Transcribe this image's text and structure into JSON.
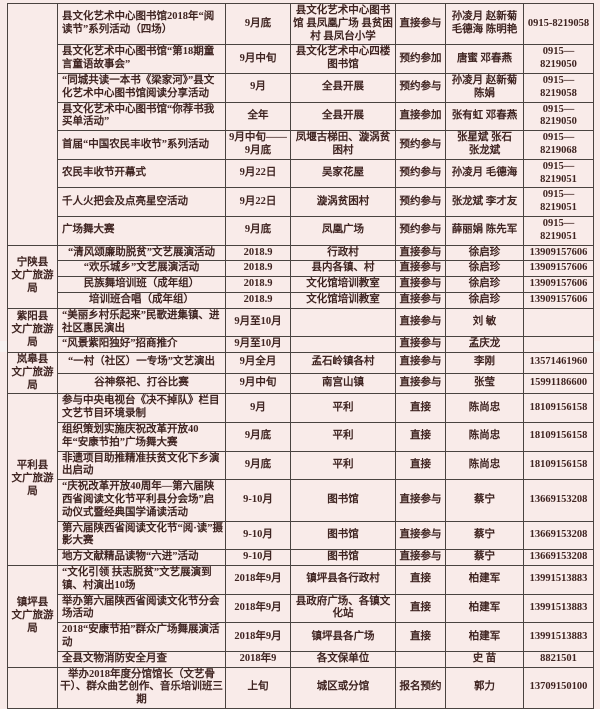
{
  "page": {
    "bg_color": "#f8eae8",
    "cell_bg_color": "#f9ebe9",
    "border_color": "#4a4340",
    "text_color": "#3f2421"
  },
  "tables": [
    {
      "org_groups": [
        {
          "label": "",
          "span": 8
        },
        {
          "label": "宁陕县\n文广旅游局",
          "span": 4
        },
        {
          "label": "紫阳县\n文广旅游局",
          "span": 2
        }
      ],
      "rows": [
        {
          "activity": "县文化艺术中心图书馆2018年“阅读节”系列活动（四场）",
          "time": "9月底",
          "location": "县文化艺术中心图书馆 县凤凰广场 县贫困村 县凤台小学",
          "participation": "直接参与",
          "contact": "孙凌月 赵新菊\n毛德海 陈明艳",
          "phone": "0915-8219058",
          "align": "left"
        },
        {
          "activity": "县文化艺术中心图书馆“第18期童言童语故事会”",
          "time": "9月中旬",
          "location": "县文化艺术中心四楼图书馆",
          "participation": "预约参加",
          "contact": "唐蜜 邓春燕",
          "phone": "0915—8219050",
          "align": "left"
        },
        {
          "activity": "“同城共读一本书《梁家河》”县文化艺术中心图书馆阅读分享活动",
          "time": "9月",
          "location": "全县开展",
          "participation": "预约参与",
          "contact": "孙凌月 赵新菊\n陈娟",
          "phone": "0915—8219058",
          "align": "left"
        },
        {
          "activity": "县文化艺术中心图书馆“你荐书我买单活动”",
          "time": "全年",
          "location": "全县开展",
          "participation": "直接参加",
          "contact": "张有虹 邓春燕",
          "phone": "0915—8219050",
          "align": "left"
        },
        {
          "activity": "首届“中国农民丰收节”系列活动",
          "time": "9月中旬——9月底",
          "location": "凤堰古梯田、漩涡贫困村",
          "participation": "预约参与",
          "contact": "张星斌 张石\n张龙斌",
          "phone": "0915—8219068",
          "align": "left"
        },
        {
          "activity": "农民丰收节开幕式",
          "time": "9月22日",
          "location": "吴家花屋",
          "participation": "预约参与",
          "contact": "孙凌月 毛德海",
          "phone": "0915—8219051",
          "align": "left"
        },
        {
          "activity": "千人火把会及点亮星空活动",
          "time": "9月22日",
          "location": "漩涡贫困村",
          "participation": "预约参与",
          "contact": "张龙斌 李才友",
          "phone": "0915—8219051",
          "align": "left"
        },
        {
          "activity": "广场舞大赛",
          "time": "9月底",
          "location": "凤凰广场",
          "participation": "预约参与",
          "contact": "薛丽娟 陈先军",
          "phone": "0915—8219051",
          "align": "left"
        },
        {
          "activity": "“清风颂廉助脱贫”文艺展演活动",
          "time": "2018.9",
          "location": "行政村",
          "participation": "直接参与",
          "contact": "徐启珍",
          "phone": "13909157606",
          "align": "center"
        },
        {
          "activity": "“欢乐城乡”文艺展演活动",
          "time": "2018.9",
          "location": "县内各镇、村",
          "participation": "直接参与",
          "contact": "徐启珍",
          "phone": "13909157606",
          "align": "center"
        },
        {
          "activity": "民族舞培训班（成年组）",
          "time": "2018.9",
          "location": "文化馆培训教室",
          "participation": "直接参与",
          "contact": "徐启珍",
          "phone": "13909157606",
          "align": "center"
        },
        {
          "activity": "培训班合唱（成年组）",
          "time": "2018.9",
          "location": "文化馆培训教室",
          "participation": "直接参与",
          "contact": "徐启珍",
          "phone": "13909157606",
          "align": "center"
        },
        {
          "activity": "“美丽乡村乐起来”民歌进集镇、进社区惠民演出",
          "time": "9月至10月",
          "location": "",
          "participation": "直接参与",
          "contact": "刘 敏",
          "phone": "",
          "align": "left"
        },
        {
          "activity": "“风景紫阳独好”招商推介",
          "time": "9月至10月",
          "location": "",
          "participation": "直接参与",
          "contact": "孟庆龙",
          "phone": "",
          "align": "left"
        }
      ]
    },
    {
      "org_groups": [
        {
          "label": "岚皋县\n文广旅游局",
          "span": 2
        },
        {
          "label": "平利县\n文广旅游局",
          "span": 6
        },
        {
          "label": "镇坪县\n文广旅游局",
          "span": 4
        },
        {
          "label": "",
          "span": 1
        }
      ],
      "rows": [
        {
          "activity": "“一村（社区）一专场”文艺演出",
          "time": "9月全月",
          "location": "孟石岭镇各村",
          "participation": "直接参与",
          "contact": "李刚",
          "phone": "13571461960",
          "align": "center"
        },
        {
          "activity": "谷神祭祀、打谷比赛",
          "time": "9月中旬",
          "location": "南宫山镇",
          "participation": "直接参与",
          "contact": "张莹",
          "phone": "15991186600",
          "align": "center"
        },
        {
          "activity": "参与中央电视台《决不掉队》栏目文艺节目环境录制",
          "time": "9月",
          "location": "平利",
          "participation": "直接",
          "contact": "陈尚忠",
          "phone": "18109156158",
          "align": "left"
        },
        {
          "activity": "组织策划实施庆祝改革开放40年“安康节拍”广场舞大赛",
          "time": "9月底",
          "location": "平利",
          "participation": "直接",
          "contact": "陈尚忠",
          "phone": "18109156158",
          "align": "left"
        },
        {
          "activity": "非遗项目助推精准扶贫文化下乡演出启动",
          "time": "9月底",
          "location": "平利",
          "participation": "直接",
          "contact": "陈尚忠",
          "phone": "18109156158",
          "align": "left"
        },
        {
          "activity": "“庆祝改革开放40周年—第六届陕西省阅读文化节平利县分会场”启动仪式暨经典国学诵读活动",
          "time": "9-10月",
          "location": "图书馆",
          "participation": "直接参与",
          "contact": "蔡宁",
          "phone": "13669153208",
          "align": "left"
        },
        {
          "activity": "第六届陕西省阅读文化节“阅·读”摄影大赛",
          "time": "9-10月",
          "location": "图书馆",
          "participation": "直接参与",
          "contact": "蔡宁",
          "phone": "13669153208",
          "align": "left"
        },
        {
          "activity": "地方文献精品读物“六进”活动",
          "time": "9-10月",
          "location": "图书馆",
          "participation": "直接参与",
          "contact": "蔡宁",
          "phone": "13669153208",
          "align": "left"
        },
        {
          "activity": "“文化引领 扶志脱贫”文艺展演到镇、村演出10场",
          "time": "2018年9月",
          "location": "镇坪县各行政村",
          "participation": "直接",
          "contact": "柏建军",
          "phone": "13991513883",
          "align": "left"
        },
        {
          "activity": "举办第六届陕西省阅读文化节分会场活动",
          "time": "2018年9月",
          "location": "县政府广场、各镇文化站",
          "participation": "直接",
          "contact": "柏建军",
          "phone": "13991513883",
          "align": "left"
        },
        {
          "activity": "2018“安康节拍”群众广场舞展演活动",
          "time": "2018年9月",
          "location": "镇坪县各广场",
          "participation": "直接",
          "contact": "柏建军",
          "phone": "13991513883",
          "align": "left"
        },
        {
          "activity": "全县文物消防安全月查",
          "time": "2018年9",
          "location": "各文保单位",
          "participation": "",
          "contact": "史  苗",
          "phone": "8821501",
          "align": "left"
        },
        {
          "activity": "举办2018年度分馆馆长（文艺骨干）、群众曲艺创作、音乐培训班三期",
          "time": "上旬",
          "location": "城区或分馆",
          "participation": "报名预约",
          "contact": "郭力",
          "phone": "13709150100",
          "align": "center"
        }
      ]
    }
  ]
}
